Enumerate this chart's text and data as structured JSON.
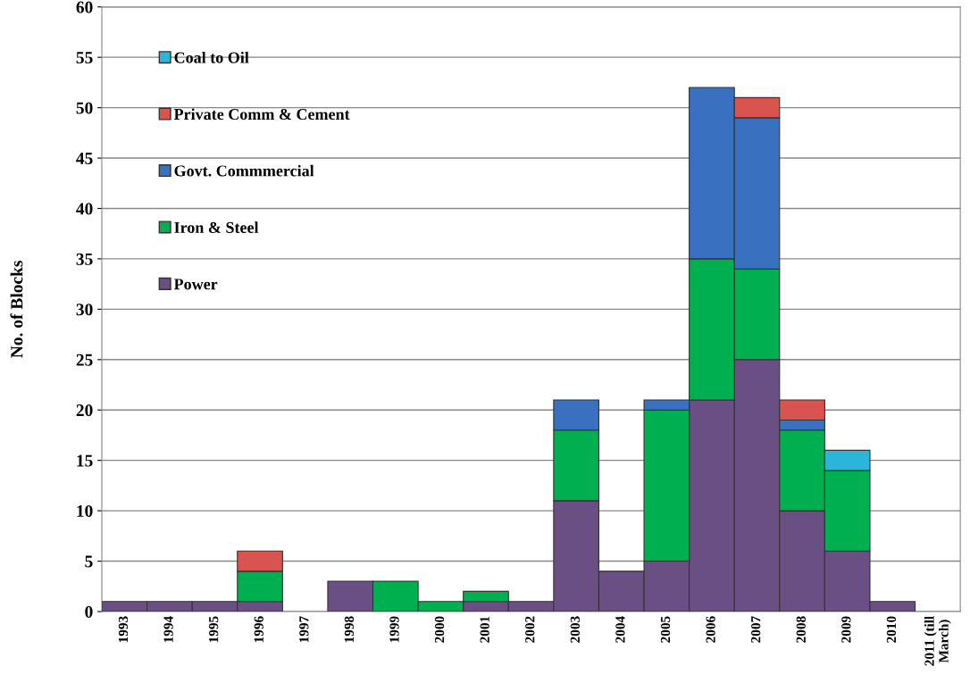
{
  "chart_data": {
    "type": "bar",
    "stacked": true,
    "ylabel": "No. of Blocks",
    "categories": [
      "1993",
      "1994",
      "1995",
      "1996",
      "1997",
      "1998",
      "1999",
      "2000",
      "2001",
      "2002",
      "2003",
      "2004",
      "2005",
      "2006",
      "2007",
      "2008",
      "2009",
      "2010",
      "2011 (till\nMarch)"
    ],
    "series": [
      {
        "name": "Power",
        "color": "#6a4f85",
        "values": [
          1,
          1,
          1,
          1,
          0,
          3,
          0,
          0,
          1,
          1,
          11,
          4,
          5,
          21,
          25,
          10,
          6,
          1,
          0
        ]
      },
      {
        "name": "Iron & Steel",
        "color": "#00b050",
        "values": [
          0,
          0,
          0,
          3,
          0,
          0,
          3,
          1,
          1,
          0,
          7,
          0,
          15,
          14,
          9,
          8,
          8,
          0,
          0
        ]
      },
      {
        "name": "Govt. Commmercial",
        "color": "#3a70c0",
        "values": [
          0,
          0,
          0,
          0,
          0,
          0,
          0,
          0,
          0,
          0,
          3,
          0,
          1,
          17,
          15,
          1,
          0,
          0,
          0
        ]
      },
      {
        "name": "Private Comm & Cement",
        "color": "#d9534f",
        "values": [
          0,
          0,
          0,
          2,
          0,
          0,
          0,
          0,
          0,
          0,
          0,
          0,
          0,
          0,
          2,
          2,
          0,
          0,
          0
        ]
      },
      {
        "name": "Coal to Oil",
        "color": "#2bb5d8",
        "values": [
          0,
          0,
          0,
          0,
          0,
          0,
          0,
          0,
          0,
          0,
          0,
          0,
          0,
          0,
          0,
          0,
          2,
          0,
          0
        ]
      }
    ],
    "ylim": [
      0,
      60
    ],
    "yticks": [
      0,
      5,
      10,
      15,
      20,
      25,
      30,
      35,
      40,
      45,
      50,
      55,
      60
    ],
    "grid": "y",
    "legend": "top left"
  }
}
